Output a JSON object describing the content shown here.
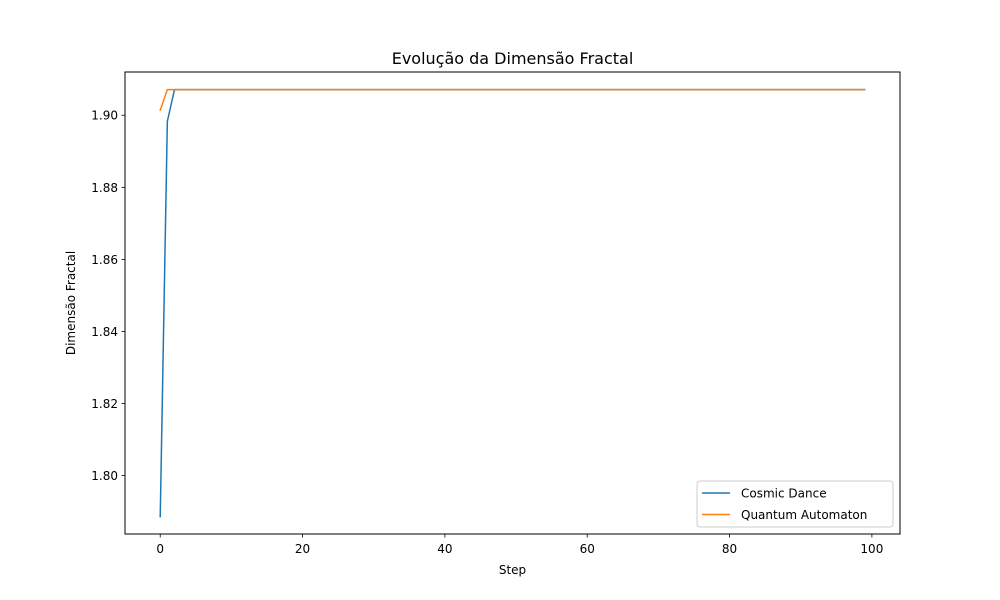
{
  "chart_data": {
    "type": "line",
    "title": "Evolução da Dimensão Fractal",
    "xlabel": "Step",
    "ylabel": "Dimensão Fractal",
    "xlim": [
      -4.95,
      103.95
    ],
    "ylim": [
      1.7838,
      1.912
    ],
    "xticks": [
      0,
      20,
      40,
      60,
      80,
      100
    ],
    "xtick_labels": [
      "0",
      "20",
      "40",
      "60",
      "80",
      "100"
    ],
    "yticks": [
      1.8,
      1.82,
      1.84,
      1.86,
      1.88,
      1.9
    ],
    "ytick_labels": [
      "1.80",
      "1.82",
      "1.84",
      "1.86",
      "1.88",
      "1.90"
    ],
    "grid": false,
    "legend_position": "lower-right",
    "series": [
      {
        "name": "Cosmic Dance",
        "color": "#1f77b4",
        "x": [
          0,
          1,
          2,
          99
        ],
        "y": [
          1.7886,
          1.8983,
          1.9071,
          1.9071
        ]
      },
      {
        "name": "Quantum Automaton",
        "color": "#ff7f0e",
        "x": [
          0,
          1,
          99
        ],
        "y": [
          1.9014,
          1.9071,
          1.9071
        ]
      }
    ]
  }
}
